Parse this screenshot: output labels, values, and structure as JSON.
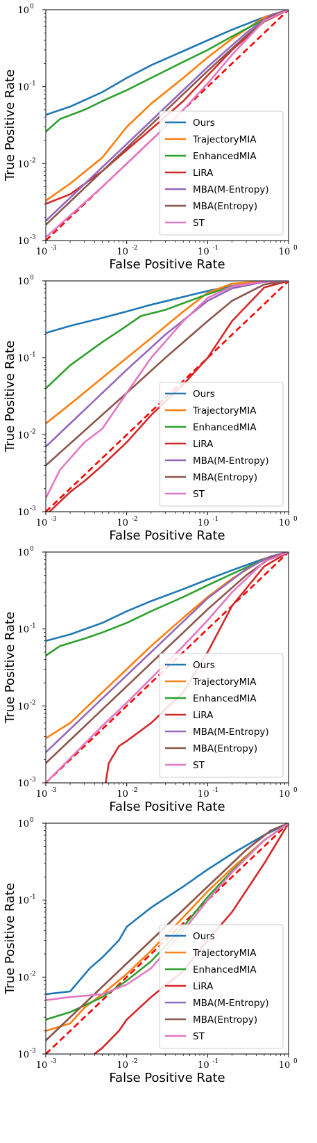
{
  "colors": {
    "Ours": "#1f77b4",
    "TrajectoryMIA": "#ff7f0e",
    "EnhancedMIA": "#2ca02c",
    "LiRA": "#d62728",
    "MBA(M-Entropy)": "#9467bd",
    "MBA(Entropy)": "#8c564b",
    "ST": "#e377c2",
    "diagonal": "#ff0000"
  },
  "chart_data": [
    {
      "type": "line",
      "xscale": "log",
      "yscale": "log",
      "xlim": [
        0.001,
        1
      ],
      "ylim": [
        0.001,
        1
      ],
      "xlabel": "False Positive Rate",
      "ylabel": "True Positive Rate",
      "x_ticks": [
        "10",
        "10",
        "10",
        "10"
      ],
      "x_tick_exps": [
        "-3",
        "-2",
        "-1",
        "0"
      ],
      "y_ticks": [
        "10",
        "10",
        "10",
        "10"
      ],
      "y_tick_exps": [
        "-3",
        "-2",
        "-1",
        "0"
      ],
      "legend_position": "lower-right",
      "series": [
        {
          "name": "Ours",
          "x": [
            0.001,
            0.002,
            0.005,
            0.01,
            0.02,
            0.05,
            0.1,
            0.2,
            0.5,
            1
          ],
          "y": [
            0.043,
            0.055,
            0.085,
            0.13,
            0.19,
            0.29,
            0.4,
            0.55,
            0.8,
            1
          ]
        },
        {
          "name": "TrajectoryMIA",
          "x": [
            0.001,
            0.002,
            0.005,
            0.01,
            0.02,
            0.05,
            0.1,
            0.2,
            0.5,
            1
          ],
          "y": [
            0.0033,
            0.0055,
            0.012,
            0.03,
            0.06,
            0.13,
            0.24,
            0.42,
            0.8,
            1
          ]
        },
        {
          "name": "EnhancedMIA",
          "x": [
            0.001,
            0.0015,
            0.003,
            0.005,
            0.01,
            0.02,
            0.05,
            0.1,
            0.2,
            0.5,
            1
          ],
          "y": [
            0.026,
            0.038,
            0.05,
            0.065,
            0.09,
            0.13,
            0.21,
            0.3,
            0.45,
            0.75,
            1
          ]
        },
        {
          "name": "LiRA",
          "x": [
            0.001,
            0.002,
            0.005,
            0.01,
            0.02,
            0.05,
            0.1,
            0.2,
            0.5,
            1
          ],
          "y": [
            0.003,
            0.004,
            0.008,
            0.015,
            0.028,
            0.065,
            0.14,
            0.3,
            0.7,
            1
          ]
        },
        {
          "name": "MBA(M-Entropy)",
          "x": [
            0.001,
            0.01,
            0.1,
            0.3,
            0.6,
            1
          ],
          "y": [
            0.0018,
            0.018,
            0.18,
            0.5,
            0.85,
            1
          ]
        },
        {
          "name": "MBA(Entropy)",
          "x": [
            0.001,
            0.01,
            0.1,
            0.3,
            0.6,
            1
          ],
          "y": [
            0.0016,
            0.016,
            0.16,
            0.46,
            0.82,
            1
          ]
        },
        {
          "name": "ST",
          "x": [
            0.001,
            0.005,
            0.01,
            0.05,
            0.1,
            0.2,
            0.5,
            1
          ],
          "y": [
            0.0011,
            0.005,
            0.01,
            0.05,
            0.11,
            0.26,
            0.72,
            1
          ]
        }
      ]
    },
    {
      "type": "line",
      "xscale": "log",
      "yscale": "log",
      "xlim": [
        0.001,
        1
      ],
      "ylim": [
        0.001,
        1
      ],
      "xlabel": "False Positive Rate",
      "ylabel": "True Positive Rate",
      "x_ticks": [
        "10",
        "10",
        "10",
        "10"
      ],
      "x_tick_exps": [
        "-3",
        "-2",
        "-1",
        "0"
      ],
      "y_ticks": [
        "10",
        "10",
        "10",
        "10"
      ],
      "y_tick_exps": [
        "-3",
        "-2",
        "-1",
        "0"
      ],
      "legend_position": "lower-right",
      "series": [
        {
          "name": "Ours",
          "x": [
            0.001,
            0.002,
            0.005,
            0.01,
            0.02,
            0.05,
            0.1,
            0.2,
            0.5,
            1
          ],
          "y": [
            0.21,
            0.26,
            0.33,
            0.4,
            0.49,
            0.62,
            0.74,
            0.86,
            0.97,
            1
          ]
        },
        {
          "name": "TrajectoryMIA",
          "x": [
            0.001,
            0.002,
            0.005,
            0.01,
            0.02,
            0.05,
            0.1,
            0.2,
            0.5,
            1
          ],
          "y": [
            0.014,
            0.025,
            0.055,
            0.1,
            0.18,
            0.4,
            0.7,
            0.92,
            0.99,
            1
          ]
        },
        {
          "name": "EnhancedMIA",
          "x": [
            0.001,
            0.002,
            0.005,
            0.01,
            0.015,
            0.03,
            0.06,
            0.1,
            0.2,
            0.5,
            1
          ],
          "y": [
            0.04,
            0.08,
            0.16,
            0.26,
            0.35,
            0.42,
            0.55,
            0.67,
            0.85,
            0.97,
            1
          ]
        },
        {
          "name": "LiRA",
          "x": [
            0.001,
            0.002,
            0.003,
            0.005,
            0.01,
            0.02,
            0.05,
            0.1,
            0.2,
            0.5,
            1
          ],
          "y": [
            0.0009,
            0.0018,
            0.0025,
            0.004,
            0.008,
            0.018,
            0.045,
            0.1,
            0.3,
            0.82,
            1
          ]
        },
        {
          "name": "MBA(M-Entropy)",
          "x": [
            0.001,
            0.01,
            0.03,
            0.1,
            0.2,
            0.5,
            1
          ],
          "y": [
            0.007,
            0.07,
            0.2,
            0.55,
            0.8,
            0.97,
            1
          ]
        },
        {
          "name": "MBA(Entropy)",
          "x": [
            0.001,
            0.01,
            0.03,
            0.1,
            0.2,
            0.5,
            1
          ],
          "y": [
            0.004,
            0.035,
            0.1,
            0.3,
            0.55,
            0.9,
            1
          ]
        },
        {
          "name": "ST",
          "x": [
            0.001,
            0.0015,
            0.003,
            0.005,
            0.01,
            0.02,
            0.05,
            0.1,
            0.2,
            0.5,
            1
          ],
          "y": [
            0.0015,
            0.0035,
            0.008,
            0.012,
            0.035,
            0.1,
            0.3,
            0.6,
            0.85,
            0.98,
            1
          ]
        }
      ]
    },
    {
      "type": "line",
      "xscale": "log",
      "yscale": "log",
      "xlim": [
        0.001,
        1
      ],
      "ylim": [
        0.001,
        1
      ],
      "xlabel": "False Positive Rate",
      "ylabel": "True Positive Rate",
      "x_ticks": [
        "10",
        "10",
        "10",
        "10"
      ],
      "x_tick_exps": [
        "-3",
        "-2",
        "-1",
        "0"
      ],
      "y_ticks": [
        "10",
        "10",
        "10",
        "10"
      ],
      "y_tick_exps": [
        "-3",
        "-2",
        "-1",
        "0"
      ],
      "legend_position": "lower-right",
      "series": [
        {
          "name": "Ours",
          "x": [
            0.001,
            0.002,
            0.005,
            0.01,
            0.02,
            0.05,
            0.1,
            0.2,
            0.5,
            1
          ],
          "y": [
            0.07,
            0.085,
            0.12,
            0.17,
            0.23,
            0.33,
            0.44,
            0.58,
            0.82,
            1
          ]
        },
        {
          "name": "TrajectoryMIA",
          "x": [
            0.001,
            0.002,
            0.005,
            0.01,
            0.02,
            0.05,
            0.1,
            0.2,
            0.5,
            1
          ],
          "y": [
            0.0038,
            0.006,
            0.015,
            0.03,
            0.06,
            0.14,
            0.26,
            0.45,
            0.82,
            1
          ]
        },
        {
          "name": "EnhancedMIA",
          "x": [
            0.001,
            0.0015,
            0.003,
            0.005,
            0.01,
            0.02,
            0.05,
            0.1,
            0.2,
            0.5,
            1
          ],
          "y": [
            0.045,
            0.06,
            0.075,
            0.09,
            0.12,
            0.17,
            0.26,
            0.37,
            0.52,
            0.8,
            1
          ]
        },
        {
          "name": "LiRA",
          "x": [
            0.0055,
            0.006,
            0.008,
            0.01,
            0.02,
            0.05,
            0.1,
            0.2,
            0.5,
            1
          ],
          "y": [
            0.001,
            0.0018,
            0.003,
            0.0035,
            0.006,
            0.015,
            0.05,
            0.2,
            0.65,
            1
          ]
        },
        {
          "name": "MBA(M-Entropy)",
          "x": [
            0.001,
            0.01,
            0.1,
            0.3,
            0.6,
            1
          ],
          "y": [
            0.0025,
            0.025,
            0.25,
            0.6,
            0.88,
            1
          ]
        },
        {
          "name": "MBA(Entropy)",
          "x": [
            0.001,
            0.01,
            0.1,
            0.3,
            0.6,
            1
          ],
          "y": [
            0.0018,
            0.018,
            0.18,
            0.5,
            0.84,
            1
          ]
        },
        {
          "name": "ST",
          "x": [
            0.001,
            0.005,
            0.01,
            0.05,
            0.1,
            0.2,
            0.5,
            1
          ],
          "y": [
            0.001,
            0.0055,
            0.011,
            0.06,
            0.13,
            0.3,
            0.75,
            1
          ]
        }
      ]
    },
    {
      "type": "line",
      "xscale": "log",
      "yscale": "log",
      "xlim": [
        0.001,
        1
      ],
      "ylim": [
        0.001,
        1
      ],
      "xlabel": "False Positive Rate",
      "ylabel": "True Positive Rate",
      "x_ticks": [
        "10",
        "10",
        "10",
        "10"
      ],
      "x_tick_exps": [
        "-3",
        "-2",
        "-1",
        "0"
      ],
      "y_ticks": [
        "10",
        "10",
        "10",
        "10"
      ],
      "y_tick_exps": [
        "-3",
        "-2",
        "-1",
        "0"
      ],
      "legend_position": "lower-right",
      "series": [
        {
          "name": "Ours",
          "x": [
            0.001,
            0.002,
            0.0035,
            0.005,
            0.008,
            0.01,
            0.02,
            0.05,
            0.1,
            0.2,
            0.5,
            1
          ],
          "y": [
            0.006,
            0.0065,
            0.013,
            0.018,
            0.03,
            0.045,
            0.08,
            0.15,
            0.25,
            0.4,
            0.7,
            1
          ]
        },
        {
          "name": "TrajectoryMIA",
          "x": [
            0.001,
            0.002,
            0.003,
            0.005,
            0.01,
            0.02,
            0.05,
            0.1,
            0.2,
            0.5,
            1
          ],
          "y": [
            0.002,
            0.0025,
            0.004,
            0.006,
            0.011,
            0.022,
            0.06,
            0.13,
            0.26,
            0.6,
            1
          ]
        },
        {
          "name": "EnhancedMIA",
          "x": [
            0.001,
            0.002,
            0.005,
            0.01,
            0.02,
            0.05,
            0.1,
            0.2,
            0.5,
            1
          ],
          "y": [
            0.0028,
            0.0035,
            0.0055,
            0.009,
            0.016,
            0.045,
            0.11,
            0.24,
            0.6,
            1
          ]
        },
        {
          "name": "LiRA",
          "x": [
            0.004,
            0.005,
            0.008,
            0.01,
            0.02,
            0.05,
            0.1,
            0.2,
            0.5,
            1
          ],
          "y": [
            0.001,
            0.0012,
            0.002,
            0.0028,
            0.0055,
            0.012,
            0.03,
            0.07,
            0.3,
            1
          ]
        },
        {
          "name": "MBA(M-Entropy)",
          "x": [
            0.001,
            0.01,
            0.1,
            0.3,
            0.6,
            1
          ],
          "y": [
            0.0015,
            0.015,
            0.15,
            0.45,
            0.8,
            1
          ]
        },
        {
          "name": "MBA(Entropy)",
          "x": [
            0.001,
            0.01,
            0.1,
            0.3,
            0.6,
            1
          ],
          "y": [
            0.0015,
            0.015,
            0.15,
            0.45,
            0.8,
            1
          ]
        },
        {
          "name": "ST",
          "x": [
            0.001,
            0.002,
            0.005,
            0.01,
            0.02,
            0.05,
            0.1,
            0.2,
            0.5,
            1
          ],
          "y": [
            0.005,
            0.0055,
            0.006,
            0.008,
            0.013,
            0.04,
            0.1,
            0.23,
            0.6,
            1
          ]
        }
      ]
    }
  ]
}
